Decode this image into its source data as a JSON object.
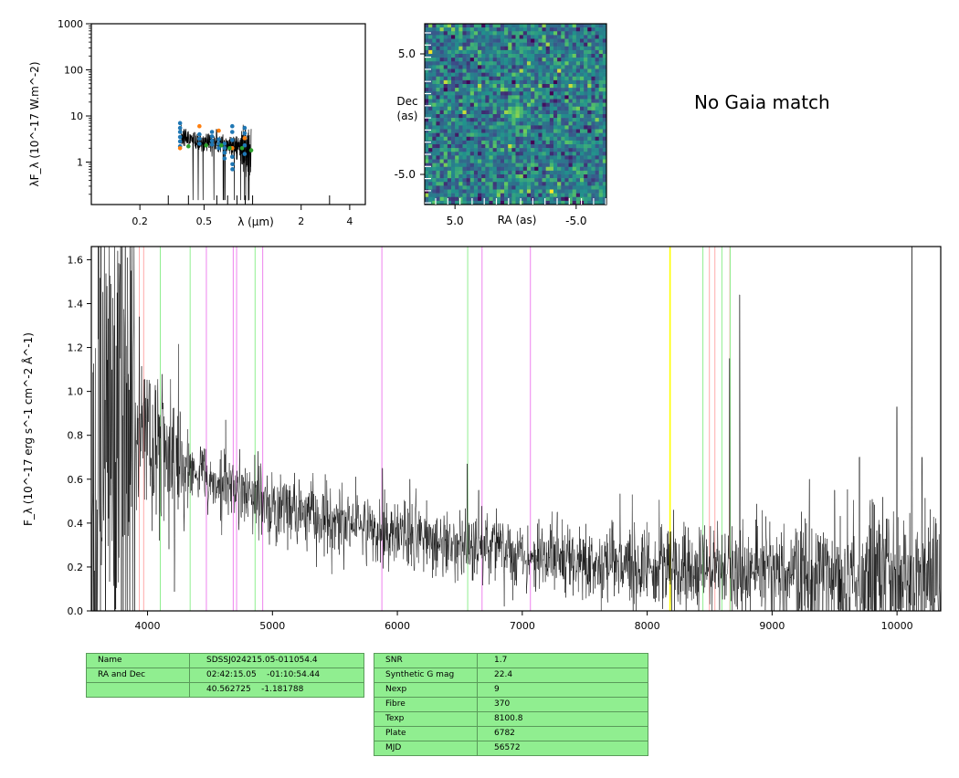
{
  "sed_panel": {
    "ylabel": "λF_λ (10^-17 W.m^-2)",
    "xlabel": "λ (μm)",
    "ytick_labels": [
      "1000",
      "100",
      "10",
      "1"
    ],
    "xtick_labels": [
      "0.2",
      "0.5",
      "2",
      "4"
    ],
    "scale": "log-log"
  },
  "image_panel": {
    "xlabel": "RA (as)",
    "ylabel": "Dec\n(as)",
    "ytick_labels": [
      "5.0",
      "-5.0"
    ],
    "xtick_labels": [
      "5.0",
      "-5.0"
    ],
    "colormap": "viridis"
  },
  "gaia_text": "No Gaia match",
  "chart_data": [
    {
      "type": "line",
      "panel": "sed",
      "xscale": "log",
      "yscale": "log",
      "xlim": [
        0.1,
        5.0
      ],
      "ylim": [
        0.12,
        1000
      ],
      "series": [
        {
          "kind": "spectrum",
          "color": "#000000"
        },
        {
          "kind": "points",
          "color": "#1f77b4",
          "x": [
            0.355,
            0.355,
            0.355,
            0.355,
            0.355,
            0.355,
            0.468,
            0.468,
            0.468,
            0.56,
            0.56,
            0.56,
            0.56,
            0.617,
            0.617,
            0.617,
            0.67,
            0.67,
            0.67,
            0.67,
            0.748,
            0.748,
            0.748,
            0.748,
            0.748,
            0.75,
            0.75,
            0.893,
            0.893,
            0.893,
            0.893,
            0.893
          ],
          "y": [
            7.0,
            5.5,
            4.5,
            3.5,
            2.8,
            2.2,
            4.0,
            3.2,
            2.5,
            4.5,
            3.6,
            2.9,
            2.4,
            3.1,
            2.5,
            2.0,
            2.5,
            2.0,
            1.6,
            1.2,
            6.0,
            4.5,
            3.0,
            2.0,
            1.3,
            0.9,
            0.7,
            5.5,
            4.2,
            3.3,
            2.3,
            1.5
          ]
        },
        {
          "kind": "points",
          "color": "#ff7f0e",
          "x": [
            0.355,
            0.468,
            0.617,
            0.748,
            0.893
          ],
          "y": [
            2.0,
            6.0,
            4.8,
            2.0,
            3.3
          ]
        },
        {
          "kind": "points",
          "color": "#2ca02c",
          "x": [
            0.4,
            0.515,
            0.64,
            0.72,
            0.86,
            0.98
          ],
          "y": [
            2.2,
            2.3,
            2.3,
            2.0,
            2.0,
            1.8
          ]
        }
      ]
    },
    {
      "type": "heatmap",
      "panel": "image",
      "grid_cols": 48,
      "grid_rows": 48,
      "xlim": [
        7.5,
        -7.5
      ],
      "ylim": [
        -7.5,
        7.5
      ],
      "source_at": [
        0.0,
        0.0
      ]
    },
    {
      "type": "line",
      "panel": "spectrum",
      "ylabel": "F_λ (10^-17 erg s^-1 cm^-2 Å^-1)",
      "xlim": [
        3550,
        10350
      ],
      "ylim": [
        0.0,
        1.66
      ],
      "xtick_labels": [
        "4000",
        "5000",
        "6000",
        "7000",
        "8000",
        "9000",
        "10000"
      ],
      "ytick_labels": [
        "0.0",
        "0.2",
        "0.4",
        "0.6",
        "0.8",
        "1.0",
        "1.2",
        "1.4",
        "1.6"
      ],
      "continuum": {
        "x": [
          3600,
          3800,
          4000,
          4200,
          4500,
          5000,
          5500,
          6000,
          6500,
          7000,
          7500,
          8000,
          8500,
          9000,
          9500,
          10000,
          10300
        ],
        "y": [
          0.9,
          0.85,
          0.78,
          0.7,
          0.6,
          0.48,
          0.4,
          0.35,
          0.3,
          0.26,
          0.22,
          0.2,
          0.18,
          0.17,
          0.16,
          0.15,
          0.15
        ]
      },
      "spikes": [
        {
          "x": 4120,
          "y": 0.92
        },
        {
          "x": 4230,
          "y": 0.8
        },
        {
          "x": 5880,
          "y": 0.65
        },
        {
          "x": 6560,
          "y": 0.67
        },
        {
          "x": 6100,
          "y": 0.6
        },
        {
          "x": 6650,
          "y": 0.55
        },
        {
          "x": 7280,
          "y": 0.45
        },
        {
          "x": 8740,
          "y": 1.44
        },
        {
          "x": 8660,
          "y": 1.15
        },
        {
          "x": 9300,
          "y": 0.6
        },
        {
          "x": 9700,
          "y": 0.7
        },
        {
          "x": 10000,
          "y": 0.93
        },
        {
          "x": 10120,
          "y": 1.66
        },
        {
          "x": 10200,
          "y": 0.7
        },
        {
          "x": 9500,
          "y": 0.55
        }
      ],
      "lines": [
        {
          "x": 3934,
          "color": "#ffaaaa"
        },
        {
          "x": 3969,
          "color": "#ffaaaa"
        },
        {
          "x": 4102,
          "color": "#90ee90"
        },
        {
          "x": 4341,
          "color": "#90ee90"
        },
        {
          "x": 4471,
          "color": "#ee82ee"
        },
        {
          "x": 4686,
          "color": "#ee82ee"
        },
        {
          "x": 4713,
          "color": "#ee82ee"
        },
        {
          "x": 4861,
          "color": "#90ee90"
        },
        {
          "x": 4922,
          "color": "#ee82ee"
        },
        {
          "x": 5876,
          "color": "#ee82ee"
        },
        {
          "x": 6563,
          "color": "#90ee90"
        },
        {
          "x": 6678,
          "color": "#ee82ee"
        },
        {
          "x": 7065,
          "color": "#ee82ee"
        },
        {
          "x": 8183,
          "color": "#ffff00",
          "width": 1.6
        },
        {
          "x": 8446,
          "color": "#90ee90"
        },
        {
          "x": 8498,
          "color": "#ffaaaa"
        },
        {
          "x": 8542,
          "color": "#ffaaaa"
        },
        {
          "x": 8598,
          "color": "#90ee90"
        },
        {
          "x": 8662,
          "color": "#ffaaaa"
        },
        {
          "x": 8665,
          "color": "#90ee90"
        }
      ]
    }
  ],
  "table_left": [
    {
      "key": "Name",
      "value": "SDSSJ024215.05-011054.4"
    },
    {
      "key": "RA and Dec",
      "value": "02:42:15.05    -01:10:54.44"
    },
    {
      "key": "",
      "value": "40.562725    -1.181788"
    }
  ],
  "table_right": [
    {
      "key": "SNR",
      "value": "1.7"
    },
    {
      "key": "Synthetic G mag",
      "value": "22.4"
    },
    {
      "key": "Nexp",
      "value": "9"
    },
    {
      "key": "Fibre",
      "value": "370"
    },
    {
      "key": "Texp",
      "value": "8100.8"
    },
    {
      "key": "Plate",
      "value": "6782"
    },
    {
      "key": "MJD",
      "value": "56572"
    }
  ]
}
